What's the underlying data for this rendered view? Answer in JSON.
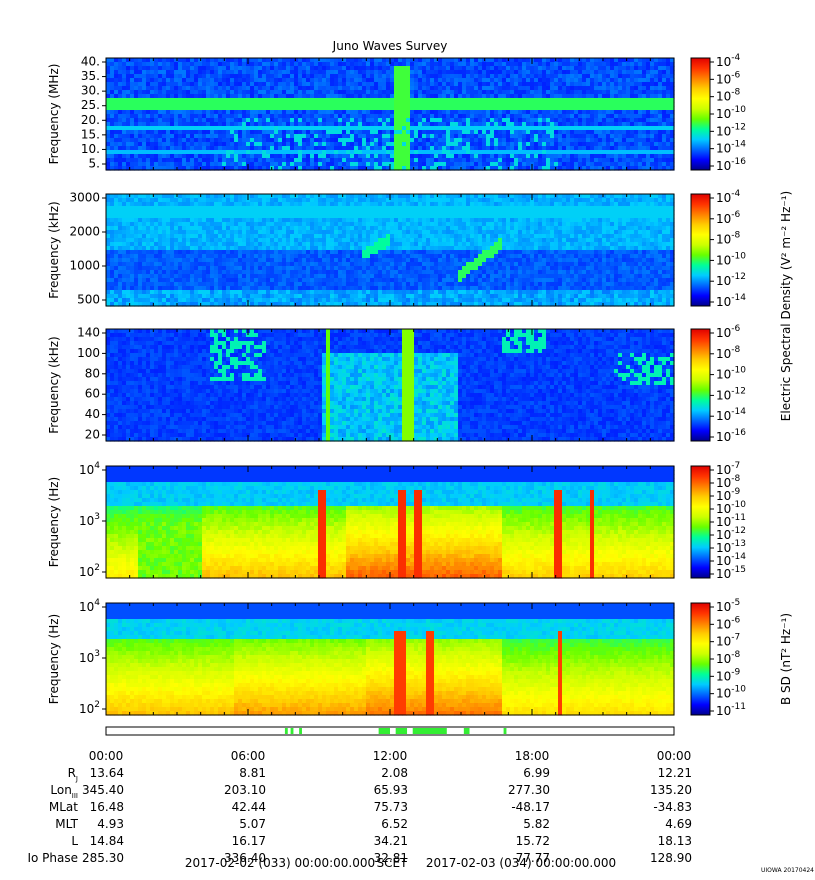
{
  "title": "Juno Waves Survey",
  "colors": {
    "cmap": [
      "#00008b",
      "#0000ff",
      "#0066ff",
      "#00ccff",
      "#00ff99",
      "#66ff00",
      "#ccff00",
      "#ffff00",
      "#ffcc00",
      "#ff8000",
      "#ff3300",
      "#e00000"
    ],
    "activity": "#33ee33"
  },
  "chart_data": [
    {
      "type": "heatmap",
      "name": "panel-1",
      "ylabel": "Frequency (MHz)",
      "ytick_labels": [
        "40.",
        "35.",
        "30.",
        "25.",
        "20.",
        "15.",
        "10.",
        "5."
      ],
      "ylim": [
        3,
        41
      ],
      "colorbar_ticks": [
        {
          "base": "10",
          "exp": "-4"
        },
        {
          "base": "10",
          "exp": "-6"
        },
        {
          "base": "10",
          "exp": "-8"
        },
        {
          "base": "10",
          "exp": "-10"
        },
        {
          "base": "10",
          "exp": "-12"
        },
        {
          "base": "10",
          "exp": "-14"
        },
        {
          "base": "10",
          "exp": "-16"
        }
      ],
      "colorbar_label": ""
    },
    {
      "type": "heatmap",
      "name": "panel-2",
      "ylabel": "Frequency (kHz)",
      "ytick_labels": [
        "3000",
        "2000",
        "1000",
        "500"
      ],
      "ylim": [
        150,
        3000
      ],
      "colorbar_ticks": [
        {
          "base": "10",
          "exp": "-4"
        },
        {
          "base": "10",
          "exp": "-6"
        },
        {
          "base": "10",
          "exp": "-8"
        },
        {
          "base": "10",
          "exp": "-10"
        },
        {
          "base": "10",
          "exp": "-12"
        },
        {
          "base": "10",
          "exp": "-14"
        }
      ],
      "colorbar_label": "Electric Spectral Density (V² m⁻² Hz⁻¹)"
    },
    {
      "type": "heatmap",
      "name": "panel-3",
      "ylabel": "Frequency (kHz)",
      "ytick_labels": [
        "140",
        "100",
        "80",
        "60",
        "40",
        "20"
      ],
      "ylim": [
        20,
        140
      ],
      "colorbar_ticks": [
        {
          "base": "10",
          "exp": "-6"
        },
        {
          "base": "10",
          "exp": "-8"
        },
        {
          "base": "10",
          "exp": "-10"
        },
        {
          "base": "10",
          "exp": "-12"
        },
        {
          "base": "10",
          "exp": "-14"
        },
        {
          "base": "10",
          "exp": "-16"
        }
      ],
      "colorbar_label": ""
    },
    {
      "type": "heatmap",
      "name": "panel-4",
      "ylabel": "Frequency (Hz)",
      "ytick_labels": [
        {
          "base": "10",
          "exp": "4"
        },
        {
          "base": "10",
          "exp": "3"
        },
        {
          "base": "10",
          "exp": "2"
        }
      ],
      "ylim": [
        50,
        20000
      ],
      "colorbar_ticks": [
        {
          "base": "10",
          "exp": "-7"
        },
        {
          "base": "10",
          "exp": "-8"
        },
        {
          "base": "10",
          "exp": "-9"
        },
        {
          "base": "10",
          "exp": "-10"
        },
        {
          "base": "10",
          "exp": "-11"
        },
        {
          "base": "10",
          "exp": "-12"
        },
        {
          "base": "10",
          "exp": "-13"
        },
        {
          "base": "10",
          "exp": "-14"
        },
        {
          "base": "10",
          "exp": "-15"
        }
      ],
      "colorbar_label": ""
    },
    {
      "type": "heatmap",
      "name": "panel-5",
      "ylabel": "Frequency (Hz)",
      "ytick_labels": [
        {
          "base": "10",
          "exp": "4"
        },
        {
          "base": "10",
          "exp": "3"
        },
        {
          "base": "10",
          "exp": "2"
        }
      ],
      "ylim": [
        50,
        20000
      ],
      "colorbar_ticks": [
        {
          "base": "10",
          "exp": "-5"
        },
        {
          "base": "10",
          "exp": "-6"
        },
        {
          "base": "10",
          "exp": "-7"
        },
        {
          "base": "10",
          "exp": "-8"
        },
        {
          "base": "10",
          "exp": "-9"
        },
        {
          "base": "10",
          "exp": "-10"
        },
        {
          "base": "10",
          "exp": "-11"
        }
      ],
      "colorbar_label": "B SD (nT² Hz⁻¹)"
    }
  ],
  "time_axis": {
    "labels": [
      "00:00",
      "06:00",
      "12:00",
      "18:00",
      "00:00"
    ]
  },
  "ephemeris": [
    {
      "label": "R",
      "sub": "J",
      "values": [
        "13.64",
        "8.81",
        "2.08",
        "6.99",
        "12.21"
      ]
    },
    {
      "label": "Lon",
      "sub": "III",
      "values": [
        "345.40",
        "203.10",
        "65.93",
        "277.30",
        "135.20"
      ]
    },
    {
      "label": "MLat",
      "sub": "",
      "values": [
        "16.48",
        "42.44",
        "75.73",
        "-48.17",
        "-34.83"
      ]
    },
    {
      "label": "MLT",
      "sub": "",
      "values": [
        "4.93",
        "5.07",
        "6.52",
        "5.82",
        "4.69"
      ]
    },
    {
      "label": "L",
      "sub": "",
      "values": [
        "14.84",
        "16.17",
        "34.21",
        "15.72",
        "18.13"
      ]
    },
    {
      "label": "Io Phase",
      "sub": "",
      "values": [
        "285.30",
        "336.40",
        "32.81",
        "77.77",
        "128.90"
      ]
    }
  ],
  "footer": {
    "start": "2017-02-02 (033) 00:00:00.000",
    "scet": "SCET",
    "end": "2017-02-03 (034) 00:00:00.000",
    "credit": "UIOWA 20170424"
  }
}
